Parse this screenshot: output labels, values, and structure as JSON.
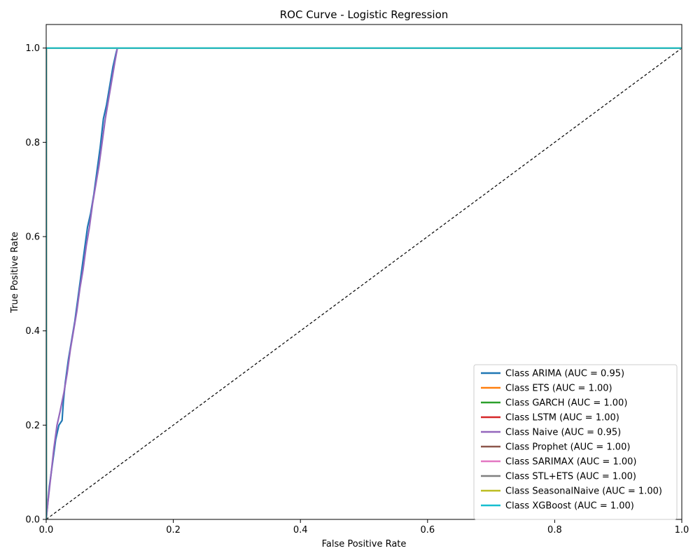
{
  "chart_data": {
    "type": "line",
    "title": "ROC Curve - Logistic Regression",
    "xlabel": "False Positive Rate",
    "ylabel": "True Positive Rate",
    "xlim": [
      0.0,
      1.0
    ],
    "ylim": [
      0.0,
      1.05
    ],
    "xticks": [
      "0.0",
      "0.2",
      "0.4",
      "0.6",
      "0.8",
      "1.0"
    ],
    "yticks": [
      "0.0",
      "0.2",
      "0.4",
      "0.6",
      "0.8",
      "1.0"
    ],
    "grid": false,
    "legend_position": "lower-right",
    "reference_line": {
      "style": "dashed",
      "color": "#000000",
      "x": [
        0.0,
        1.0
      ],
      "y": [
        0.0,
        1.0
      ]
    },
    "series": [
      {
        "name": "Class ARIMA (AUC = 0.95)",
        "color": "#1f77b4",
        "x": [
          0.0,
          0.005,
          0.01,
          0.015,
          0.02,
          0.025,
          0.027,
          0.03,
          0.035,
          0.04,
          0.045,
          0.05,
          0.055,
          0.06,
          0.065,
          0.07,
          0.075,
          0.08,
          0.085,
          0.09,
          0.095,
          0.1,
          0.105,
          0.11,
          0.112,
          0.2,
          0.4,
          0.6,
          0.8,
          1.0
        ],
        "y": [
          0.0,
          0.07,
          0.12,
          0.17,
          0.2,
          0.21,
          0.25,
          0.29,
          0.34,
          0.38,
          0.42,
          0.47,
          0.52,
          0.57,
          0.62,
          0.65,
          0.69,
          0.74,
          0.79,
          0.85,
          0.88,
          0.92,
          0.96,
          0.99,
          1.0,
          1.0,
          1.0,
          1.0,
          1.0,
          1.0
        ]
      },
      {
        "name": "Class ETS (AUC = 1.00)",
        "color": "#ff7f0e",
        "x": [
          0.0,
          0.0,
          1.0
        ],
        "y": [
          0.0,
          1.0,
          1.0
        ]
      },
      {
        "name": "Class GARCH (AUC = 1.00)",
        "color": "#2ca02c",
        "x": [
          0.0,
          0.0,
          1.0
        ],
        "y": [
          0.0,
          1.0,
          1.0
        ]
      },
      {
        "name": "Class LSTM (AUC = 1.00)",
        "color": "#d62728",
        "x": [
          0.0,
          0.0,
          1.0
        ],
        "y": [
          0.0,
          1.0,
          1.0
        ]
      },
      {
        "name": "Class Naive (AUC = 0.95)",
        "color": "#9467bd",
        "x": [
          0.0,
          0.003,
          0.008,
          0.012,
          0.017,
          0.022,
          0.028,
          0.033,
          0.038,
          0.043,
          0.048,
          0.053,
          0.058,
          0.063,
          0.068,
          0.073,
          0.078,
          0.083,
          0.088,
          0.093,
          0.098,
          0.103,
          0.108,
          0.112,
          0.2,
          0.4,
          0.6,
          0.8,
          1.0
        ],
        "y": [
          0.0,
          0.04,
          0.1,
          0.15,
          0.2,
          0.23,
          0.27,
          0.31,
          0.36,
          0.4,
          0.44,
          0.49,
          0.53,
          0.58,
          0.62,
          0.67,
          0.71,
          0.75,
          0.8,
          0.85,
          0.89,
          0.93,
          0.97,
          1.0,
          1.0,
          1.0,
          1.0,
          1.0,
          1.0
        ]
      },
      {
        "name": "Class Prophet (AUC = 1.00)",
        "color": "#8c564b",
        "x": [
          0.0,
          0.0,
          1.0
        ],
        "y": [
          0.0,
          1.0,
          1.0
        ]
      },
      {
        "name": "Class SARIMAX (AUC = 1.00)",
        "color": "#e377c2",
        "x": [
          0.0,
          0.0,
          1.0
        ],
        "y": [
          0.0,
          1.0,
          1.0
        ]
      },
      {
        "name": "Class STL+ETS (AUC = 1.00)",
        "color": "#7f7f7f",
        "x": [
          0.0,
          0.0,
          1.0
        ],
        "y": [
          0.0,
          1.0,
          1.0
        ]
      },
      {
        "name": "Class SeasonalNaive (AUC = 1.00)",
        "color": "#bcbd22",
        "x": [
          0.0,
          0.0,
          1.0
        ],
        "y": [
          0.0,
          1.0,
          1.0
        ]
      },
      {
        "name": "Class XGBoost (AUC = 1.00)",
        "color": "#17becf",
        "x": [
          0.0,
          0.0,
          1.0
        ],
        "y": [
          0.0,
          1.0,
          1.0
        ]
      }
    ]
  }
}
